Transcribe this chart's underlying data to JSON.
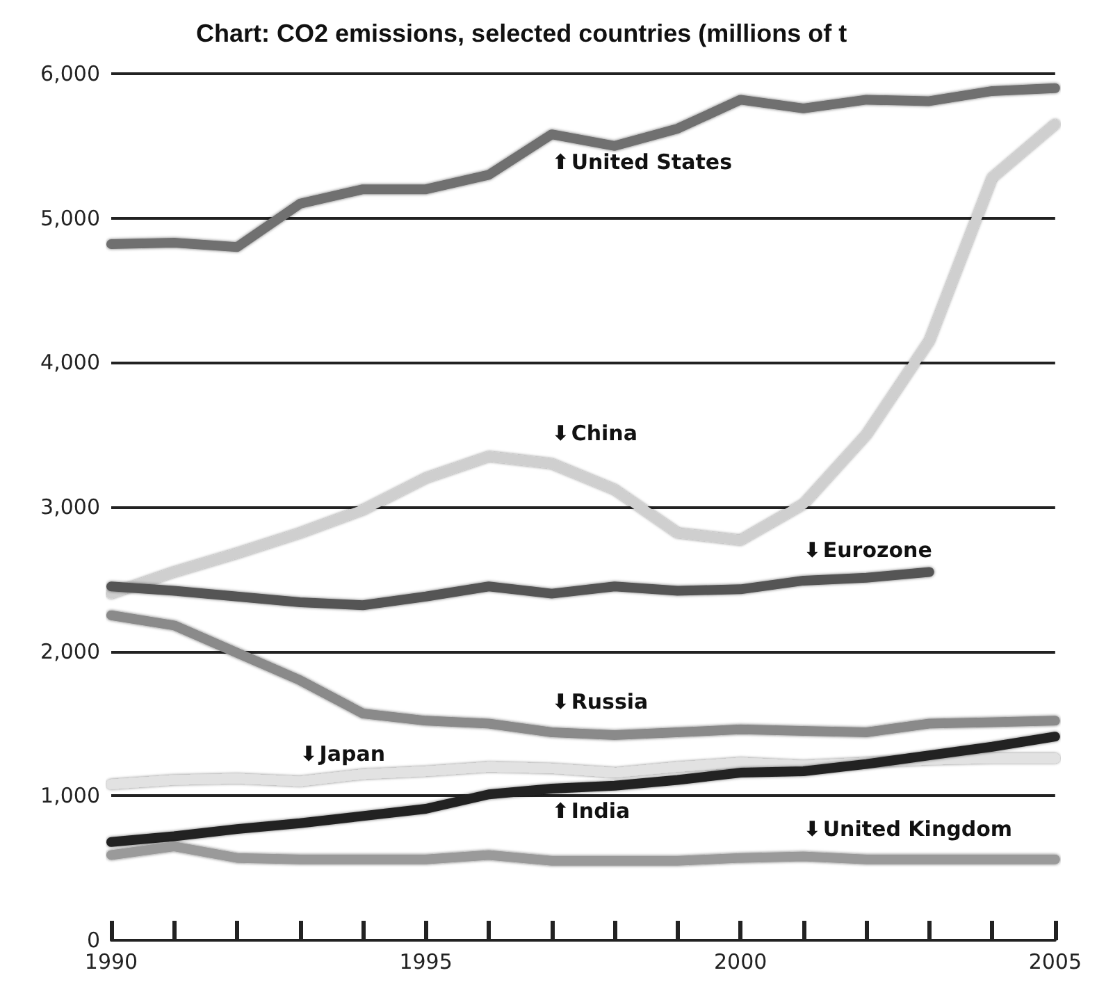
{
  "chart_data": {
    "type": "line",
    "title": "Chart: CO2 emissions, selected countries (millions of t",
    "x": [
      1990,
      1991,
      1992,
      1993,
      1994,
      1995,
      1996,
      1997,
      1998,
      1999,
      2000,
      2001,
      2002,
      2003,
      2004,
      2005
    ],
    "series": [
      {
        "name": "United States",
        "color": "#707070",
        "values": [
          4820,
          4830,
          4800,
          5100,
          5200,
          5200,
          5300,
          5580,
          5500,
          5620,
          5820,
          5760,
          5820,
          5810,
          5880,
          5900
        ]
      },
      {
        "name": "China",
        "color": "#cfcfcf",
        "values": [
          2400,
          2550,
          2680,
          2820,
          2980,
          3200,
          3350,
          3300,
          3120,
          2820,
          2770,
          3020,
          3500,
          4150,
          5280,
          5650
        ]
      },
      {
        "name": "Eurozone",
        "color": "#555555",
        "values": [
          2450,
          2420,
          2380,
          2340,
          2320,
          2380,
          2450,
          2400,
          2450,
          2420,
          2430,
          2490,
          2510,
          2550,
          null,
          null
        ]
      },
      {
        "name": "Russia",
        "color": "#8a8a8a",
        "values": [
          2250,
          2180,
          1990,
          1800,
          1570,
          1520,
          1500,
          1440,
          1420,
          1440,
          1460,
          1450,
          1440,
          1500,
          1510,
          1520
        ]
      },
      {
        "name": "Japan",
        "color": "#e2e2e2",
        "values": [
          1080,
          1110,
          1120,
          1100,
          1150,
          1170,
          1200,
          1190,
          1160,
          1200,
          1230,
          1210,
          1230,
          1250,
          1260,
          1260
        ]
      },
      {
        "name": "India",
        "color": "#222222",
        "values": [
          680,
          720,
          770,
          810,
          860,
          910,
          1010,
          1050,
          1070,
          1110,
          1160,
          1170,
          1220,
          1280,
          1340,
          1410
        ]
      },
      {
        "name": "United Kingdom",
        "color": "#9a9a9a",
        "values": [
          590,
          650,
          570,
          560,
          560,
          560,
          590,
          550,
          550,
          550,
          570,
          580,
          560,
          560,
          560,
          560
        ]
      }
    ],
    "annotations": [
      "⬆",
      "⬇",
      "⬇",
      "⬇",
      "⬇",
      "⬆",
      "⬇"
    ],
    "xlim": [
      1990,
      2005
    ],
    "xticks": [
      1990,
      {
        "value": 1991,
        "label": null
      },
      {
        "value": 1992,
        "label": null
      },
      {
        "value": 1993,
        "label": null
      },
      {
        "value": 1994,
        "label": null
      },
      1995,
      {
        "value": 1996,
        "label": null
      },
      {
        "value": 1997,
        "label": null
      },
      {
        "value": 1998,
        "label": null
      },
      {
        "value": 1999,
        "label": null
      },
      2000,
      {
        "value": 2001,
        "label": null
      },
      {
        "value": 2002,
        "label": null
      },
      {
        "value": 2003,
        "label": null
      },
      {
        "value": 2004,
        "label": null
      },
      2005
    ],
    "ylim": [
      0,
      6000
    ],
    "yticks": [
      0,
      {
        "value": 1000,
        "label": "1,000"
      },
      {
        "value": 2000,
        "label": "2,000"
      },
      {
        "value": 3000,
        "label": "3,000"
      },
      {
        "value": 4000,
        "label": "4,000"
      },
      {
        "value": 5000,
        "label": "5,000"
      },
      {
        "value": 6000,
        "label": "6,000"
      }
    ],
    "grid": "y",
    "legend": false,
    "marker": "none",
    "line_style": "solid"
  }
}
